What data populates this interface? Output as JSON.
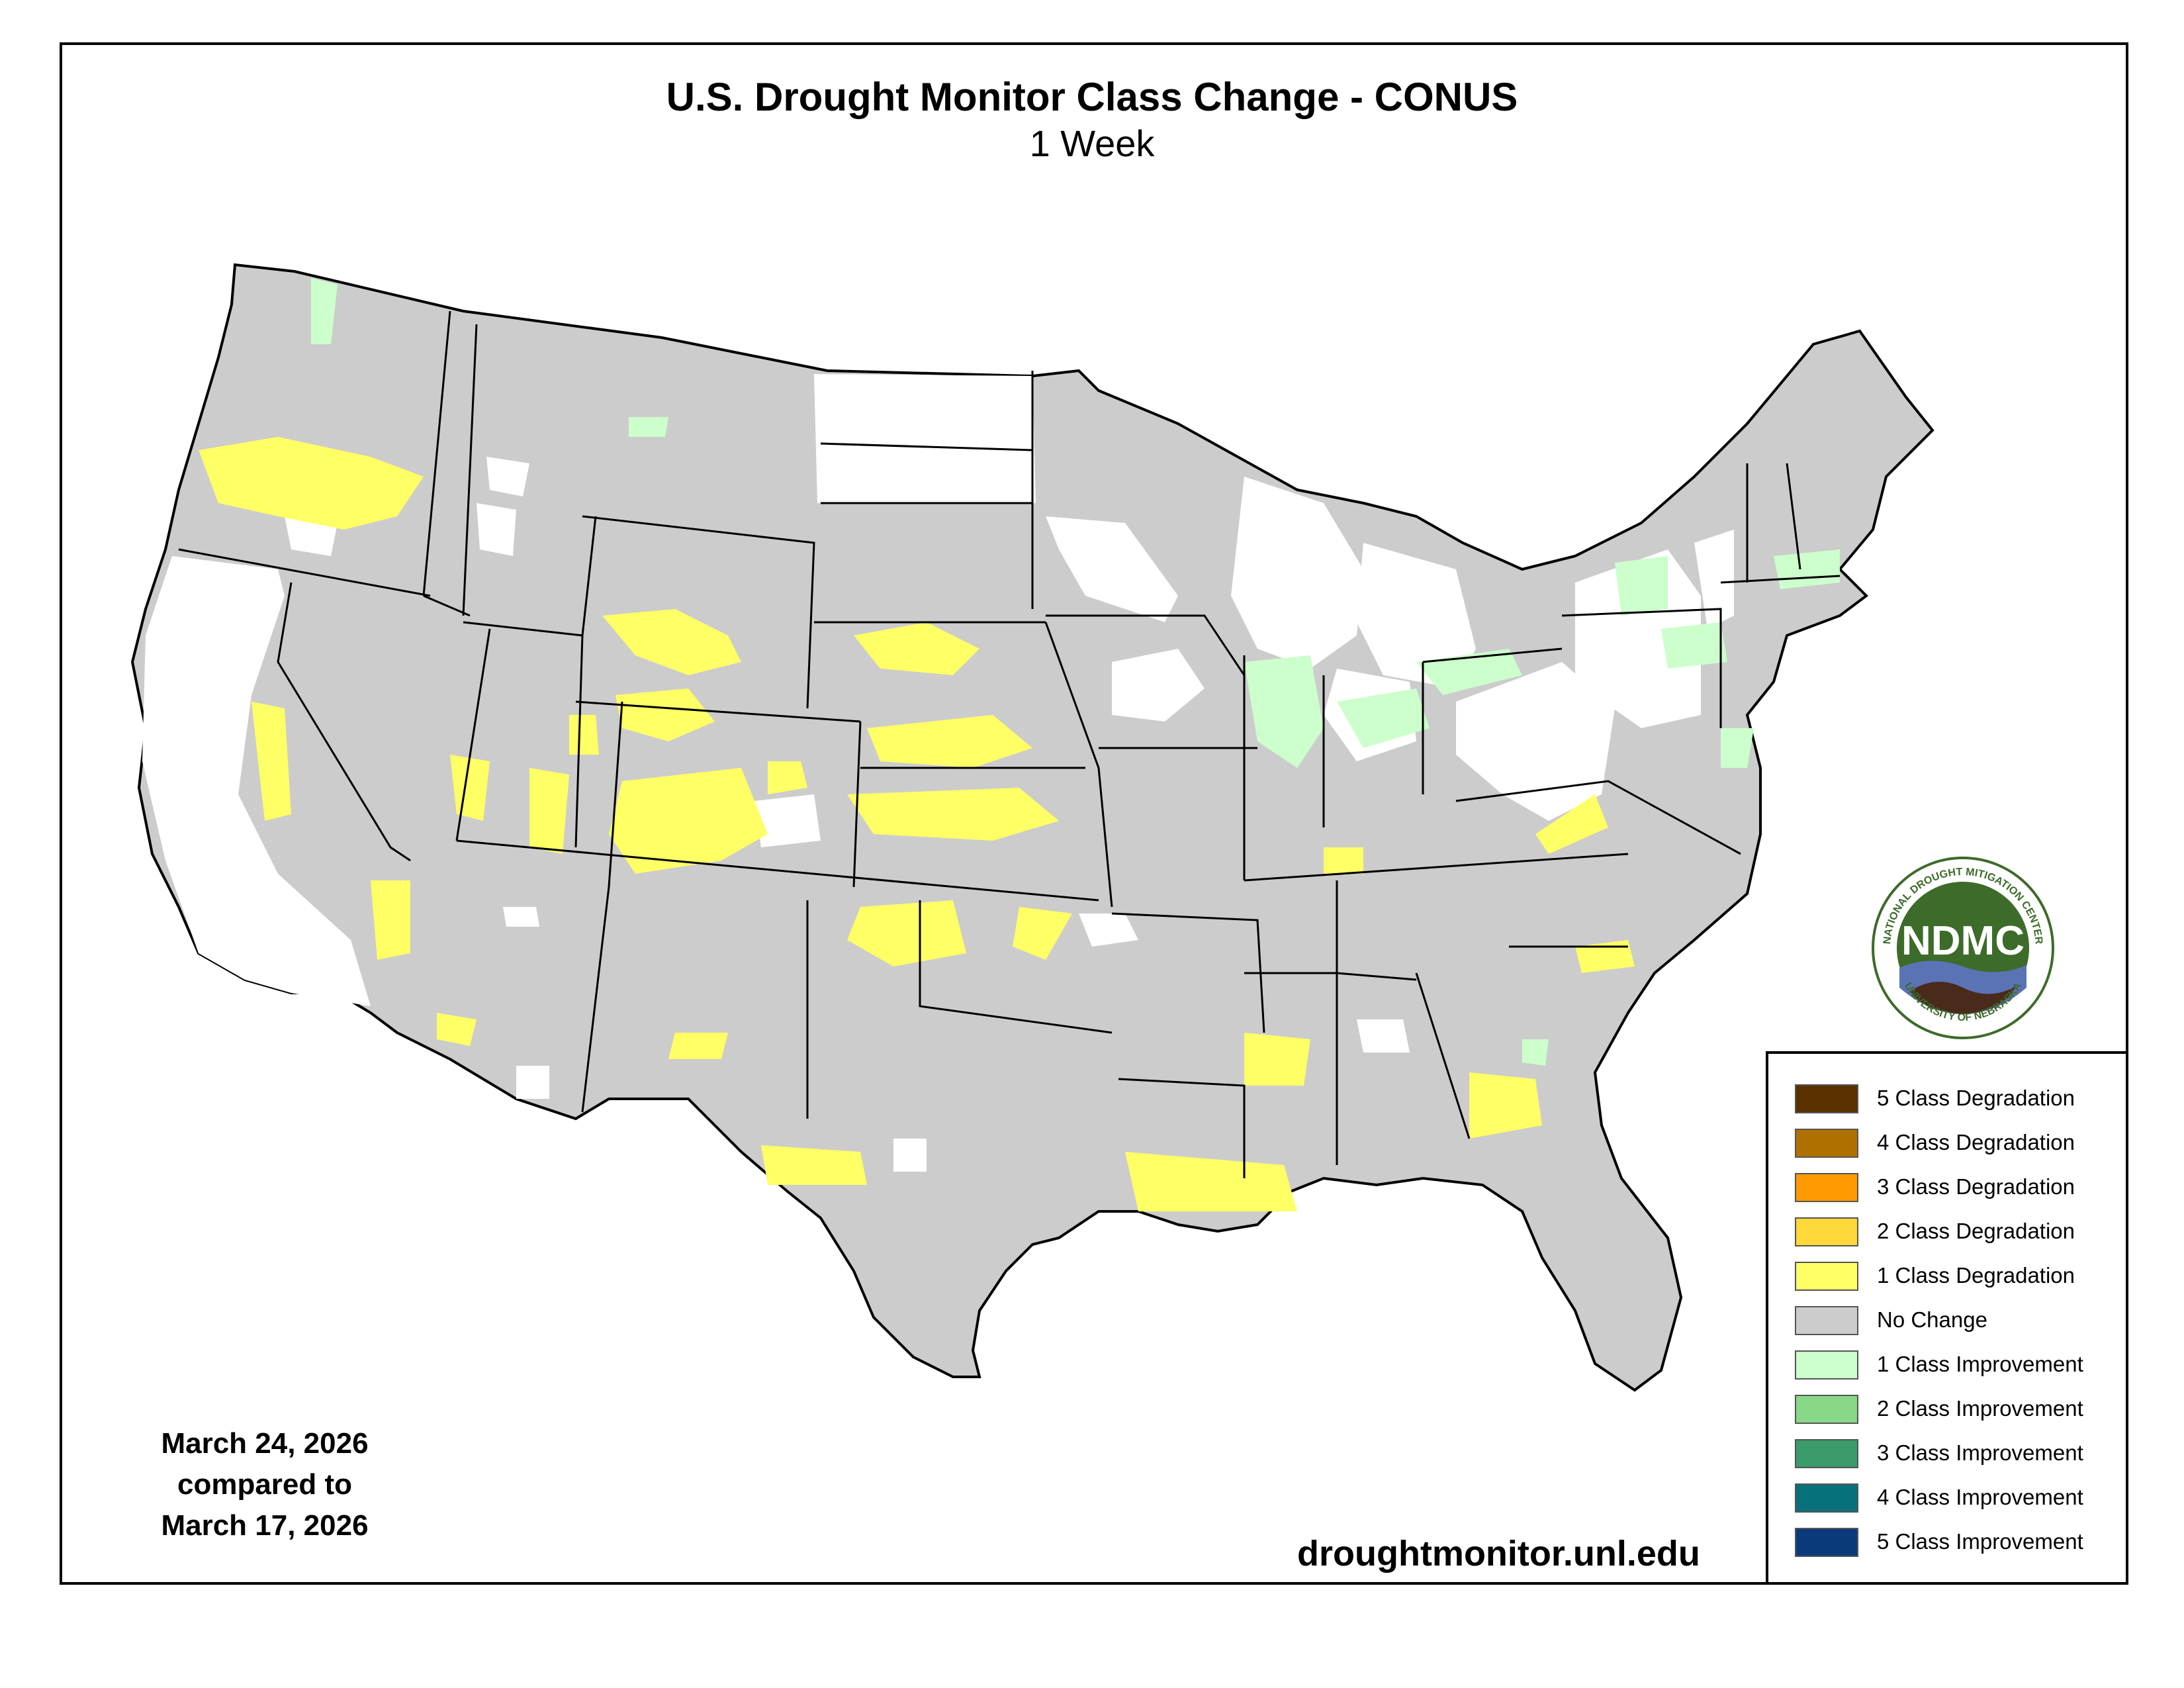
{
  "title": "U.S. Drought Monitor Class Change - CONUS",
  "subtitle": "1 Week",
  "dates": {
    "current": "March 24, 2026",
    "compared": "compared to",
    "previous": "March 17, 2026"
  },
  "website": "droughtmonitor.unl.edu",
  "logo": {
    "center_text": "NDMC",
    "ring_top": "NATIONAL DROUGHT MITIGATION CENTER",
    "ring_bottom": "UNIVERSITY OF NEBRASKA"
  },
  "legend": [
    {
      "label": "5 Class Degradation",
      "color": "#5a3000"
    },
    {
      "label": "4 Class Degradation",
      "color": "#b07000"
    },
    {
      "label": "3 Class Degradation",
      "color": "#ff9a00"
    },
    {
      "label": "2 Class Degradation",
      "color": "#ffd83a"
    },
    {
      "label": "1 Class Degradation",
      "color": "#ffff66"
    },
    {
      "label": "No Change",
      "color": "#cccccc"
    },
    {
      "label": "1 Class Improvement",
      "color": "#ccffcc"
    },
    {
      "label": "2 Class Improvement",
      "color": "#88d888"
    },
    {
      "label": "3 Class Improvement",
      "color": "#3a9a6a"
    },
    {
      "label": "4 Class Improvement",
      "color": "#07707a"
    },
    {
      "label": "5 Class Improvement",
      "color": "#0a3a7a"
    }
  ],
  "colors": {
    "no_change": "#cccccc",
    "degradation_1": "#ffff66",
    "improvement_1": "#ccffcc",
    "no_drought": "#ffffff",
    "boundary": "#000000"
  }
}
